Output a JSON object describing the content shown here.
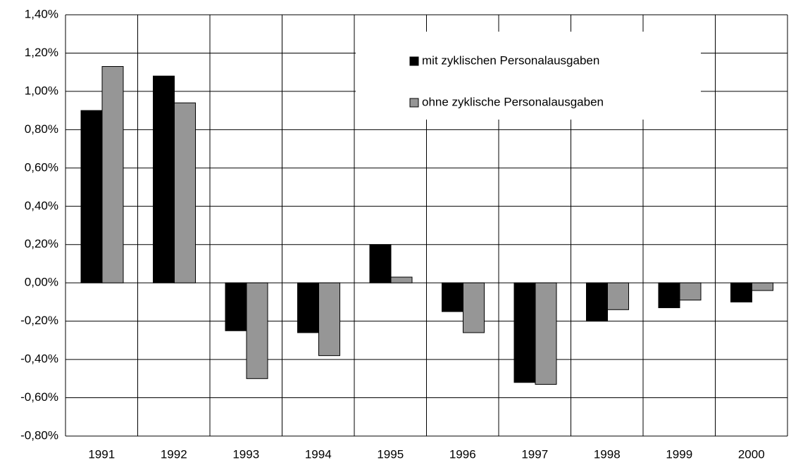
{
  "chart_data": {
    "type": "bar",
    "categories": [
      "1991",
      "1992",
      "1993",
      "1994",
      "1995",
      "1996",
      "1997",
      "1998",
      "1999",
      "2000"
    ],
    "series": [
      {
        "name": "mit zyklischen Personalausgaben",
        "color": "#000000",
        "values": [
          0.9,
          1.08,
          -0.25,
          -0.26,
          0.2,
          -0.15,
          -0.52,
          -0.2,
          -0.13,
          -0.1
        ]
      },
      {
        "name": "ohne zyklische Personalausgaben",
        "color": "#969696",
        "values": [
          1.13,
          0.94,
          -0.5,
          -0.38,
          0.03,
          -0.26,
          -0.53,
          -0.14,
          -0.09,
          -0.04
        ]
      }
    ],
    "ylim": [
      -0.8,
      1.4
    ],
    "yticks": [
      {
        "value": -0.8,
        "label": "-0,80%"
      },
      {
        "value": -0.6,
        "label": "-0,60%"
      },
      {
        "value": -0.4,
        "label": "-0,40%"
      },
      {
        "value": -0.2,
        "label": "-0,20%"
      },
      {
        "value": 0,
        "label": "0,00%"
      },
      {
        "value": 0.2,
        "label": "0,20%"
      },
      {
        "value": 0.4,
        "label": "0,40%"
      },
      {
        "value": 0.6,
        "label": "0,60%"
      },
      {
        "value": 0.8,
        "label": "0,80%"
      },
      {
        "value": 1.0,
        "label": "1,00%"
      },
      {
        "value": 1.2,
        "label": "1,20%"
      },
      {
        "value": 1.4,
        "label": "1,40%"
      }
    ],
    "grid": true
  }
}
